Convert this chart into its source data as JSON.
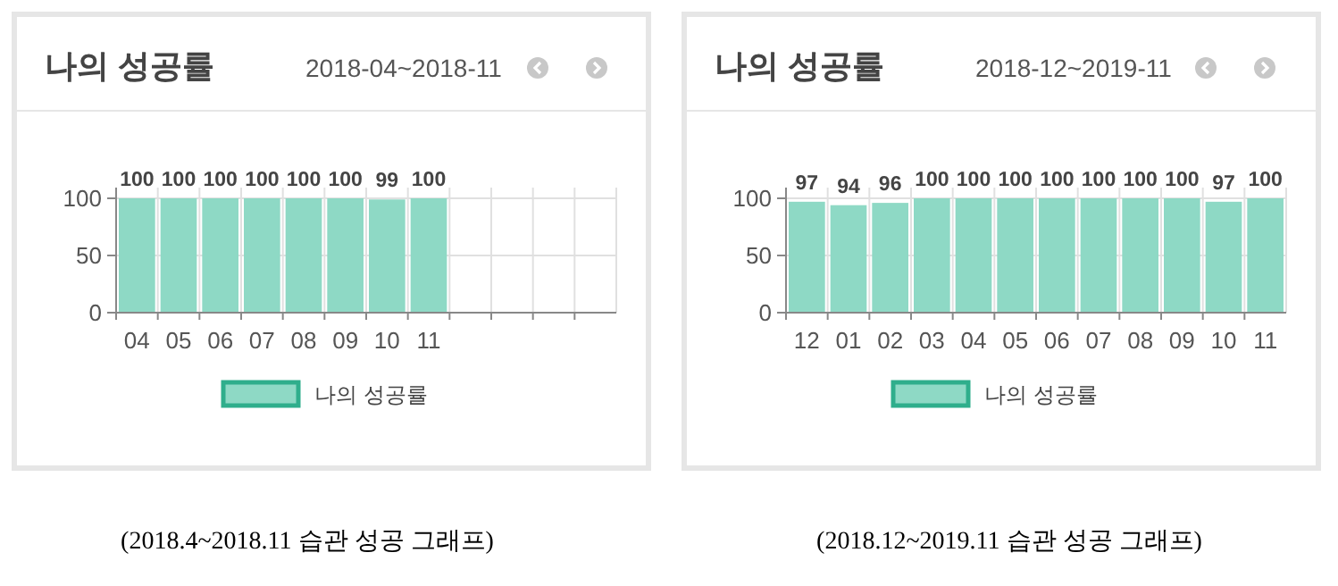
{
  "chart_data": [
    {
      "type": "bar",
      "title": "나의 성공률",
      "subtitle": "2018-04~2018-11",
      "categories": [
        "04",
        "05",
        "06",
        "07",
        "08",
        "09",
        "10",
        "11",
        null,
        null,
        null,
        null
      ],
      "series": [
        {
          "name": "나의 성공률",
          "color": "#8ed9c5",
          "values": [
            100,
            100,
            100,
            100,
            100,
            100,
            99,
            100,
            null,
            null,
            null,
            null
          ]
        }
      ],
      "ylim": [
        0,
        100
      ],
      "yticks": [
        0,
        50,
        100
      ],
      "grid": true,
      "legend": "bottom",
      "data_labels": true,
      "annotations": [
        "(2018.4~2018.11 습관 성공 그래프)"
      ]
    },
    {
      "type": "bar",
      "title": "나의 성공률",
      "subtitle": "2018-12~2019-11",
      "categories": [
        "12",
        "01",
        "02",
        "03",
        "04",
        "05",
        "06",
        "07",
        "08",
        "09",
        "10",
        "11"
      ],
      "series": [
        {
          "name": "나의 성공률",
          "color": "#8ed9c5",
          "values": [
            97,
            94,
            96,
            100,
            100,
            100,
            100,
            100,
            100,
            100,
            97,
            100
          ]
        }
      ],
      "ylim": [
        0,
        100
      ],
      "yticks": [
        0,
        50,
        100
      ],
      "grid": true,
      "legend": "bottom",
      "data_labels": true,
      "annotations": [
        "(2018.12~2019.11 습관 성공 그래프)"
      ]
    }
  ]
}
